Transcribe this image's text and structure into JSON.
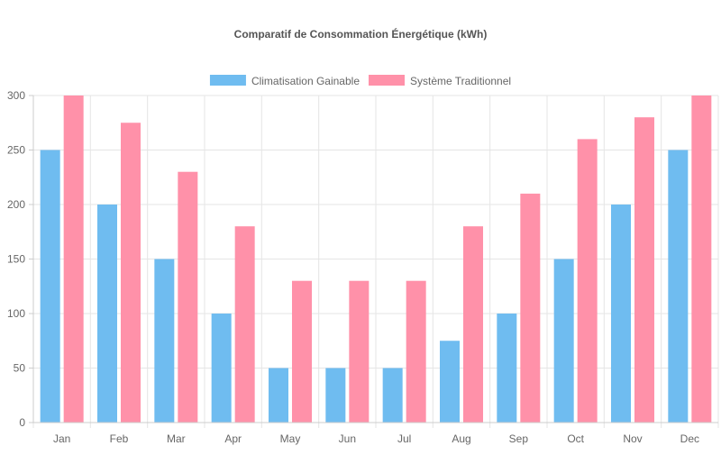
{
  "chart_data": {
    "type": "bar",
    "title": "Comparatif de Consommation Énergétique (kWh)",
    "xlabel": "",
    "ylabel": "",
    "categories": [
      "Jan",
      "Feb",
      "Mar",
      "Apr",
      "May",
      "Jun",
      "Jul",
      "Aug",
      "Sep",
      "Oct",
      "Nov",
      "Dec"
    ],
    "series": [
      {
        "name": "Climatisation Gainable",
        "color": "#6fbcf0",
        "values": [
          250,
          200,
          150,
          100,
          50,
          50,
          50,
          75,
          100,
          150,
          200,
          250
        ]
      },
      {
        "name": "Système Traditionnel",
        "color": "#ff91a9",
        "values": [
          300,
          275,
          230,
          180,
          130,
          130,
          130,
          180,
          210,
          260,
          280,
          300
        ]
      }
    ],
    "ylim": [
      0,
      300
    ],
    "yticks": [
      0,
      50,
      100,
      150,
      200,
      250,
      300
    ],
    "grid": true,
    "legend_position": "top-center"
  }
}
